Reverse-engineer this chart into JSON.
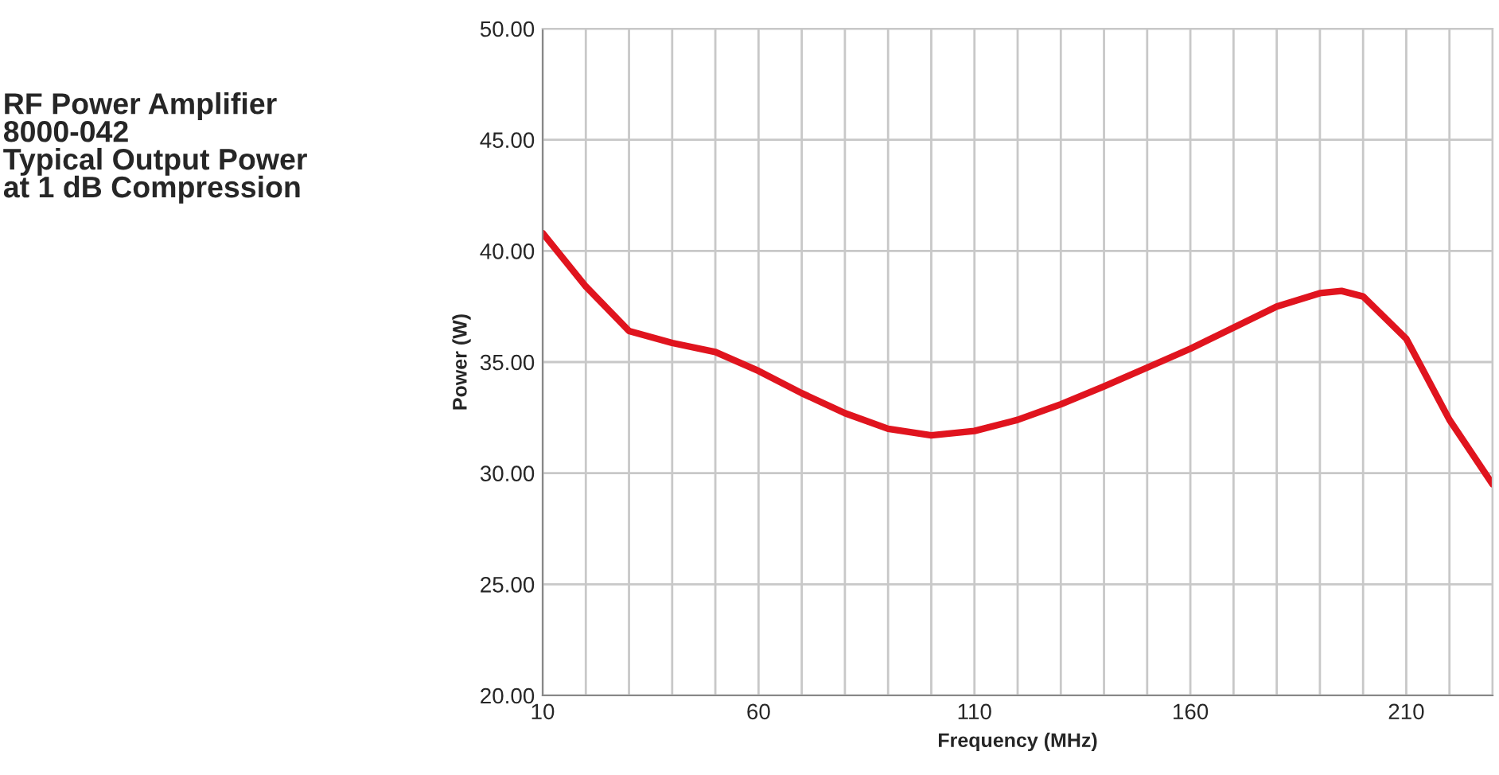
{
  "chart_data": {
    "type": "line",
    "title": "RF Power Amplifier\n8000-042\nTypical Output Power\nat 1 dB Compression",
    "xlabel": "Frequency (MHz)",
    "ylabel": "Power (W)",
    "x": [
      10,
      20,
      30,
      40,
      50,
      60,
      70,
      80,
      90,
      100,
      110,
      120,
      130,
      140,
      150,
      160,
      170,
      180,
      190,
      195,
      200,
      210,
      220,
      230
    ],
    "series": [
      {
        "color": "#e0141e",
        "values": [
          40.8,
          38.4,
          36.4,
          35.86,
          35.45,
          34.6,
          33.6,
          32.7,
          32.0,
          31.7,
          31.9,
          32.4,
          33.1,
          33.9,
          34.75,
          35.6,
          36.55,
          37.5,
          38.1,
          38.2,
          37.95,
          36.05,
          32.4,
          29.5
        ]
      }
    ],
    "xlim": [
      10,
      230
    ],
    "xticks": [
      10,
      {
        "value": 20,
        "label": null
      },
      {
        "value": 30,
        "label": null
      },
      {
        "value": 40,
        "label": null
      },
      {
        "value": 50,
        "label": null
      },
      60,
      {
        "value": 70,
        "label": null
      },
      {
        "value": 80,
        "label": null
      },
      {
        "value": 90,
        "label": null
      },
      {
        "value": 100,
        "label": null
      },
      110,
      {
        "value": 120,
        "label": null
      },
      {
        "value": 130,
        "label": null
      },
      {
        "value": 140,
        "label": null
      },
      {
        "value": 150,
        "label": null
      },
      160,
      {
        "value": 170,
        "label": null
      },
      {
        "value": 180,
        "label": null
      },
      {
        "value": 190,
        "label": null
      },
      {
        "value": 200,
        "label": null
      },
      210,
      {
        "value": 220,
        "label": null
      },
      {
        "value": 230,
        "label": null
      }
    ],
    "ylim": [
      20,
      50
    ],
    "yticks": [
      {
        "value": 20,
        "label": "20.00"
      },
      {
        "value": 25,
        "label": "25.00"
      },
      {
        "value": 30,
        "label": "30.00"
      },
      {
        "value": 35,
        "label": "35.00"
      },
      {
        "value": 40,
        "label": "40.00"
      },
      {
        "value": 45,
        "label": "45.00"
      },
      {
        "value": 50,
        "label": "50.00"
      }
    ],
    "grid": true,
    "marker": "none",
    "line_style": "solid"
  }
}
